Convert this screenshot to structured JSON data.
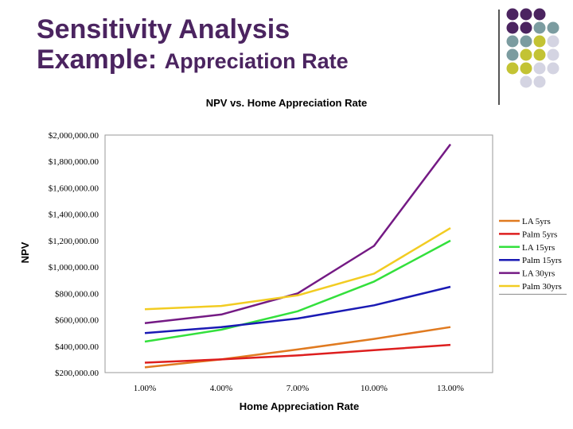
{
  "slide": {
    "title_line1": "Sensitivity Analysis",
    "title_line2_a": "Example:",
    "title_line2_b": "Appreciation Rate"
  },
  "decoration": {
    "dot_colors": [
      "#4b2460",
      "#7b9ca0",
      "#c3c334",
      "#d4d4e2"
    ]
  },
  "chart_data": {
    "type": "line",
    "title": "NPV vs. Home Appreciation Rate",
    "xlabel": "Home Appreciation Rate",
    "ylabel": "NPV",
    "categories": [
      "1.00%",
      "4.00%",
      "7.00%",
      "10.00%",
      "13.00%"
    ],
    "y_ticks": [
      "$200,000.00",
      "$400,000.00",
      "$600,000.00",
      "$800,000.00",
      "$1,000,000.00",
      "$1,200,000.00",
      "$1,400,000.00",
      "$1,600,000.00",
      "$1,800,000.00",
      "$2,000,000.00"
    ],
    "ylim": [
      200000,
      2000000
    ],
    "grid": false,
    "legend_position": "right",
    "series": [
      {
        "name": "LA 5yrs",
        "color": "#e07a20",
        "values": [
          240000,
          300000,
          375000,
          455000,
          545000
        ]
      },
      {
        "name": "Palm 5yrs",
        "color": "#dd1e1e",
        "values": [
          275000,
          300000,
          330000,
          370000,
          410000
        ]
      },
      {
        "name": "LA 15yrs",
        "color": "#33e03c",
        "values": [
          435000,
          525000,
          665000,
          890000,
          1200000
        ]
      },
      {
        "name": "Palm 15yrs",
        "color": "#1a1ab4",
        "values": [
          500000,
          545000,
          610000,
          710000,
          850000
        ]
      },
      {
        "name": "LA 30yrs",
        "color": "#741a84",
        "values": [
          575000,
          640000,
          800000,
          1160000,
          1930000
        ]
      },
      {
        "name": "Palm 30yrs",
        "color": "#f2cc22",
        "values": [
          680000,
          705000,
          785000,
          950000,
          1295000
        ]
      }
    ]
  }
}
